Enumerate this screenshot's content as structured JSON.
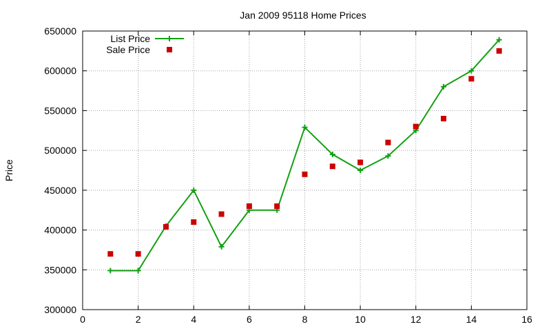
{
  "chart_data": {
    "type": "line",
    "title": "Jan 2009 95118 Home Prices",
    "xlabel": "",
    "ylabel": "Price",
    "xlim": [
      0,
      16
    ],
    "ylim": [
      300000,
      650000
    ],
    "x_ticks": [
      0,
      2,
      4,
      6,
      8,
      10,
      12,
      14,
      16
    ],
    "x_tick_labels": [
      "0",
      "2",
      "4",
      "6",
      "8",
      "10",
      "12",
      "14",
      "16"
    ],
    "y_ticks": [
      300000,
      350000,
      400000,
      450000,
      500000,
      550000,
      600000,
      650000
    ],
    "y_tick_labels": [
      "300000",
      "350000",
      "400000",
      "450000",
      "500000",
      "550000",
      "600000",
      "650000"
    ],
    "grid": true,
    "legend_position": "top-left",
    "series": [
      {
        "name": "List Price",
        "style": "linespoints",
        "marker": "plus",
        "color": "#11a011",
        "x": [
          1,
          2,
          3,
          4,
          5,
          6,
          7,
          8,
          9,
          10,
          11,
          12,
          13,
          14,
          15
        ],
        "y": [
          349000,
          349000,
          405000,
          450000,
          379000,
          425000,
          425000,
          529000,
          495000,
          475000,
          493000,
          525000,
          580000,
          600000,
          639000
        ]
      },
      {
        "name": "Sale Price",
        "style": "points",
        "marker": "square",
        "color": "#cc0000",
        "x": [
          1,
          2,
          3,
          4,
          5,
          6,
          7,
          8,
          9,
          10,
          11,
          12,
          13,
          14,
          15
        ],
        "y": [
          370000,
          370000,
          404000,
          410000,
          420000,
          430000,
          430000,
          470000,
          480000,
          485000,
          510000,
          530000,
          540000,
          590000,
          625000
        ]
      }
    ]
  }
}
